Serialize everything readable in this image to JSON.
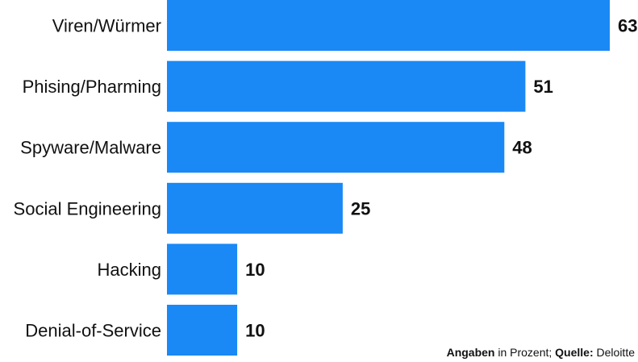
{
  "chart_data": {
    "type": "bar",
    "orientation": "horizontal",
    "categories": [
      "Viren/Würmer",
      "Phising/Pharming",
      "Spyware/Malware",
      "Social Engineering",
      "Hacking",
      "Denial-of-Service"
    ],
    "values": [
      63,
      51,
      48,
      25,
      10,
      10
    ],
    "xlim": [
      0,
      63
    ],
    "grid": false,
    "legend": "none",
    "bar_color": "#1a88f5"
  },
  "footnote": {
    "bold_1": "Angaben",
    "text_1": " in Prozent; ",
    "bold_2": "Quelle:",
    "text_2": " Deloitte"
  }
}
